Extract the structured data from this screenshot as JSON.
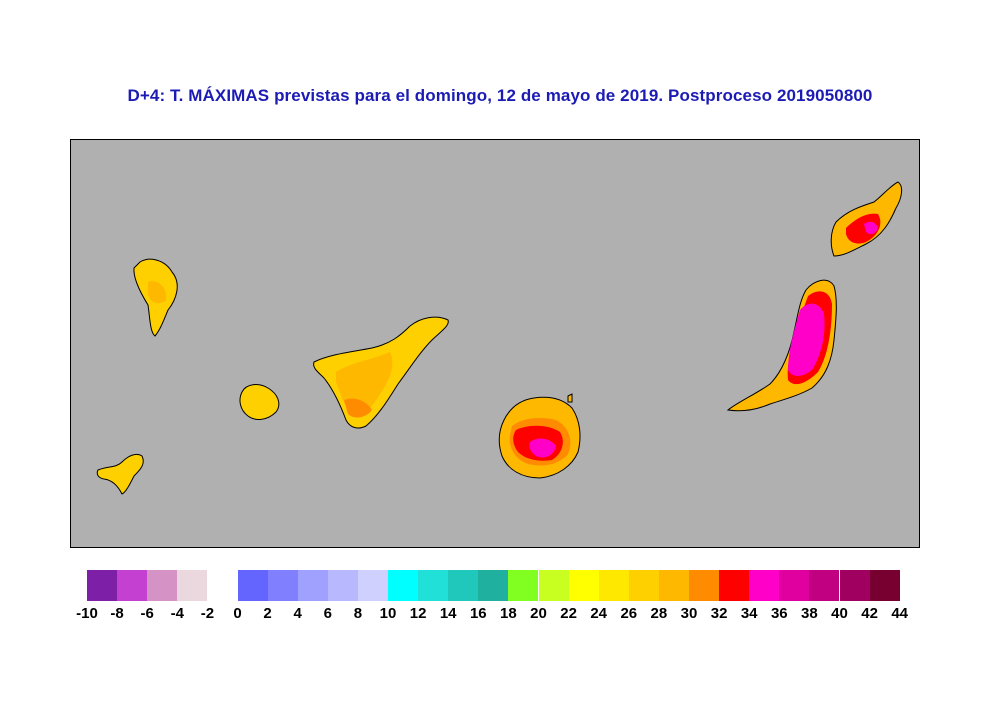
{
  "title": "D+4: T. MÁXIMAS previstas para el domingo, 12 de mayo de 2019. Postproceso 2019050800",
  "map": {
    "sea_color": "#b0b0b0",
    "islands": [
      "El Hierro",
      "La Gomera",
      "La Palma",
      "Tenerife",
      "Gran Canaria",
      "Fuerteventura",
      "Lanzarote"
    ]
  },
  "legend": {
    "colors": [
      "#7e1fa8",
      "#c440d0",
      "#d592c4",
      "#ead8de",
      "#ffffff",
      "#6464ff",
      "#8080ff",
      "#a0a0ff",
      "#b8b8ff",
      "#d0d0ff",
      "#00ffff",
      "#20e0d8",
      "#20c8bc",
      "#20b0a0",
      "#80ff20",
      "#c8ff20",
      "#ffff00",
      "#ffe800",
      "#ffd000",
      "#ffb800",
      "#ff8c00",
      "#ff0000",
      "#ff00c8",
      "#e000a0",
      "#c00080",
      "#a00060",
      "#780030"
    ],
    "labels": [
      "-10",
      "-8",
      "-6",
      "-4",
      "-2",
      "0",
      "2",
      "4",
      "6",
      "8",
      "10",
      "12",
      "14",
      "16",
      "18",
      "20",
      "22",
      "24",
      "26",
      "28",
      "30",
      "32",
      "34",
      "36",
      "38",
      "40",
      "42",
      "44"
    ]
  }
}
